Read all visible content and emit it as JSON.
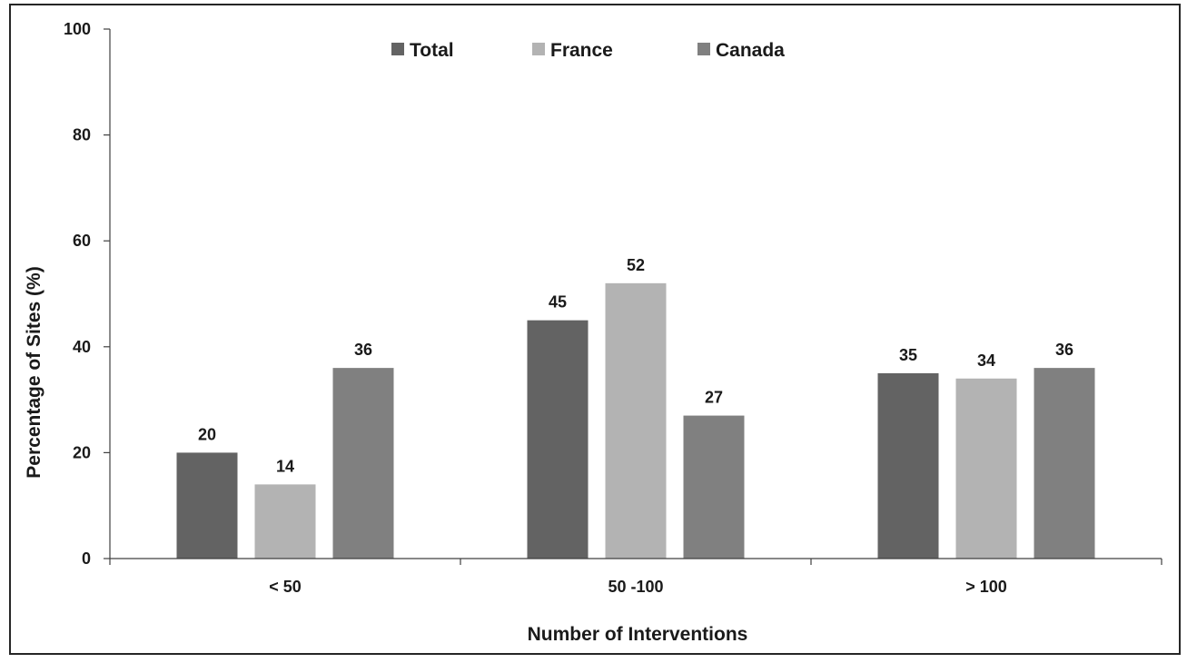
{
  "chart_data": {
    "type": "bar",
    "title": "",
    "xlabel": "Number of Interventions",
    "ylabel": "Percentage of Sites (%)",
    "ylim": [
      0,
      100
    ],
    "yticks": [
      0,
      20,
      40,
      60,
      80,
      100
    ],
    "grid": false,
    "legend_position": "top-center",
    "categories": [
      "< 50",
      "50 -100",
      "> 100"
    ],
    "series": [
      {
        "name": "Total",
        "color": "#636363",
        "values": [
          20,
          45,
          35
        ],
        "labels": [
          "20",
          "45",
          "35"
        ]
      },
      {
        "name": "France",
        "color": "#b3b3b3",
        "values": [
          14,
          52,
          34
        ],
        "labels": [
          "14",
          "52",
          "34"
        ]
      },
      {
        "name": "Canada",
        "color": "#808080",
        "values": [
          36,
          27,
          36
        ],
        "labels": [
          "36",
          "27",
          "36"
        ]
      }
    ]
  }
}
